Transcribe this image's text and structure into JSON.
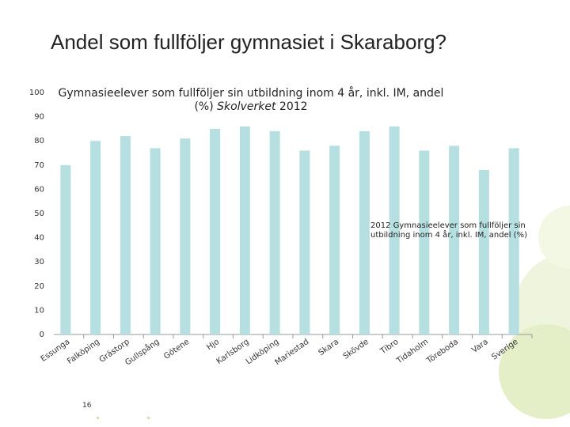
{
  "page_title": "Andel som fullföljer gymnasiet i Skaraborg?",
  "page_number": "16",
  "chart_data": {
    "type": "bar",
    "title": "Gymnasieelever som fullföljer sin utbildning inom 4 år, inkl. IM, andel (%)",
    "source": "Skolverket",
    "source_year": "2012",
    "categories": [
      "Essunga",
      "Falköping",
      "Grästorp",
      "Gullspång",
      "Götene",
      "Hjo",
      "Karlsborg",
      "Lidköping",
      "Mariestad",
      "Skara",
      "Skövde",
      "Tibro",
      "Tidaholm",
      "Töreboda",
      "Vara",
      "Sverige"
    ],
    "series": [
      {
        "name": "2012 Gymnasieelever som fullföljer sin utbildning inom 4 år, inkl. IM, andel (%)",
        "color": "#b5dfe0",
        "values": [
          70,
          80,
          82,
          77,
          81,
          85,
          86,
          84,
          76,
          78,
          84,
          86,
          76,
          78,
          68,
          77
        ]
      }
    ],
    "ylim": [
      0,
      100
    ],
    "yticks": [
      0,
      10,
      20,
      30,
      40,
      50,
      60,
      70,
      80,
      90,
      100
    ],
    "grid": false
  }
}
